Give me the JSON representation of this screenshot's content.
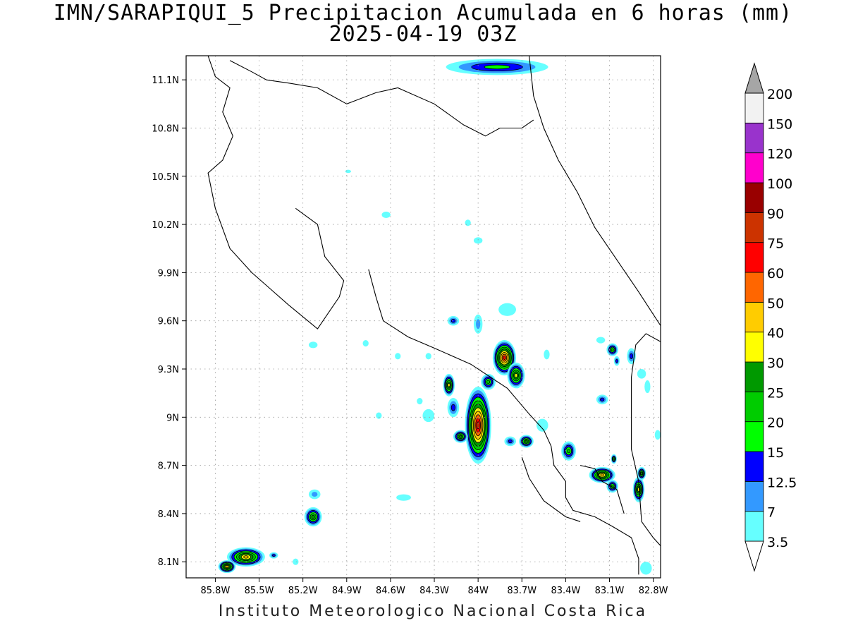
{
  "title": "IMN/SARAPIQUI_5 Precipitacion Acumulada en 6 horas (mm)",
  "subtitle": "2025-04-19 03Z",
  "credit": "Instituto Meteorologico Nacional Costa Rica",
  "chart_data": {
    "type": "heatmap",
    "title": "IMN/SARAPIQUI_5 Precipitacion Acumulada en 6 horas (mm)",
    "subtitle": "2025-04-19 03Z",
    "units": "mm",
    "xlim": [
      -86.0,
      -82.75
    ],
    "ylim": [
      8.0,
      11.25
    ],
    "x_ticks": [
      {
        "value": -85.8,
        "label": "85.8W"
      },
      {
        "value": -85.5,
        "label": "85.5W"
      },
      {
        "value": -85.2,
        "label": "85.2W"
      },
      {
        "value": -84.9,
        "label": "84.9W"
      },
      {
        "value": -84.6,
        "label": "84.6W"
      },
      {
        "value": -84.3,
        "label": "84.3W"
      },
      {
        "value": -84.0,
        "label": "84W"
      },
      {
        "value": -83.7,
        "label": "83.7W"
      },
      {
        "value": -83.4,
        "label": "83.4W"
      },
      {
        "value": -83.1,
        "label": "83.1W"
      },
      {
        "value": -82.8,
        "label": "82.8W"
      }
    ],
    "y_ticks": [
      {
        "value": 8.1,
        "label": "8.1N"
      },
      {
        "value": 8.4,
        "label": "8.4N"
      },
      {
        "value": 8.7,
        "label": "8.7N"
      },
      {
        "value": 9.0,
        "label": "9N"
      },
      {
        "value": 9.3,
        "label": "9.3N"
      },
      {
        "value": 9.6,
        "label": "9.6N"
      },
      {
        "value": 9.9,
        "label": "9.9N"
      },
      {
        "value": 10.2,
        "label": "10.2N"
      },
      {
        "value": 10.5,
        "label": "10.5N"
      },
      {
        "value": 10.8,
        "label": "10.8N"
      },
      {
        "value": 11.1,
        "label": "11.1N"
      }
    ],
    "grid": true,
    "legend": {
      "position": "right",
      "levels": [
        "3.5",
        "7",
        "12.5",
        "15",
        "20",
        "25",
        "30",
        "40",
        "50",
        "60",
        "75",
        "90",
        "100",
        "120",
        "150",
        "200"
      ],
      "colors": [
        "#66ffff",
        "#3399ff",
        "#0000ff",
        "#00ff00",
        "#00cc00",
        "#009900",
        "#ffff00",
        "#ffcc00",
        "#ff6600",
        "#ff0000",
        "#cc3300",
        "#990000",
        "#ff00cc",
        "#9933cc",
        "#f2f2f2",
        "#a6a6a6"
      ],
      "below_color": "#ffffff"
    },
    "precip_cells": [
      {
        "lon": -83.87,
        "lat": 11.18,
        "max_mm": 15,
        "rx": 0.35,
        "ry": 0.05
      },
      {
        "lon": -83.82,
        "lat": 9.37,
        "max_mm": 60,
        "rx": 0.08,
        "ry": 0.11
      },
      {
        "lon": -83.74,
        "lat": 9.26,
        "max_mm": 30,
        "rx": 0.06,
        "ry": 0.08
      },
      {
        "lon": -83.93,
        "lat": 9.22,
        "max_mm": 20,
        "rx": 0.05,
        "ry": 0.05
      },
      {
        "lon": -84.0,
        "lat": 8.95,
        "max_mm": 75,
        "rx": 0.09,
        "ry": 0.24
      },
      {
        "lon": -84.12,
        "lat": 8.88,
        "max_mm": 25,
        "rx": 0.05,
        "ry": 0.04
      },
      {
        "lon": -84.2,
        "lat": 9.2,
        "max_mm": 30,
        "rx": 0.04,
        "ry": 0.07
      },
      {
        "lon": -84.17,
        "lat": 9.06,
        "max_mm": 12.5,
        "rx": 0.04,
        "ry": 0.06
      },
      {
        "lon": -84.17,
        "lat": 9.6,
        "max_mm": 12.5,
        "rx": 0.04,
        "ry": 0.03
      },
      {
        "lon": -84.0,
        "lat": 9.58,
        "max_mm": 7,
        "rx": 0.03,
        "ry": 0.06
      },
      {
        "lon": -83.67,
        "lat": 8.85,
        "max_mm": 25,
        "rx": 0.05,
        "ry": 0.04
      },
      {
        "lon": -83.78,
        "lat": 8.85,
        "max_mm": 12.5,
        "rx": 0.04,
        "ry": 0.03
      },
      {
        "lon": -83.38,
        "lat": 8.79,
        "max_mm": 20,
        "rx": 0.05,
        "ry": 0.06
      },
      {
        "lon": -83.15,
        "lat": 8.64,
        "max_mm": 40,
        "rx": 0.09,
        "ry": 0.05
      },
      {
        "lon": -83.08,
        "lat": 8.57,
        "max_mm": 20,
        "rx": 0.04,
        "ry": 0.04
      },
      {
        "lon": -82.9,
        "lat": 8.55,
        "max_mm": 30,
        "rx": 0.04,
        "ry": 0.08
      },
      {
        "lon": -82.88,
        "lat": 8.65,
        "max_mm": 25,
        "rx": 0.03,
        "ry": 0.04
      },
      {
        "lon": -83.08,
        "lat": 9.42,
        "max_mm": 20,
        "rx": 0.04,
        "ry": 0.04
      },
      {
        "lon": -83.05,
        "lat": 9.35,
        "max_mm": 12.5,
        "rx": 0.02,
        "ry": 0.03
      },
      {
        "lon": -82.95,
        "lat": 9.38,
        "max_mm": 12.5,
        "rx": 0.03,
        "ry": 0.05
      },
      {
        "lon": -83.15,
        "lat": 9.11,
        "max_mm": 12.5,
        "rx": 0.04,
        "ry": 0.03
      },
      {
        "lon": -83.07,
        "lat": 8.74,
        "max_mm": 20,
        "rx": 0.02,
        "ry": 0.03
      },
      {
        "lon": -85.59,
        "lat": 8.13,
        "max_mm": 40,
        "rx": 0.13,
        "ry": 0.06
      },
      {
        "lon": -85.72,
        "lat": 8.07,
        "max_mm": 40,
        "rx": 0.06,
        "ry": 0.04
      },
      {
        "lon": -85.4,
        "lat": 8.14,
        "max_mm": 12.5,
        "rx": 0.03,
        "ry": 0.02
      },
      {
        "lon": -85.13,
        "lat": 8.38,
        "max_mm": 25,
        "rx": 0.06,
        "ry": 0.06
      },
      {
        "lon": -85.12,
        "lat": 8.52,
        "max_mm": 7,
        "rx": 0.04,
        "ry": 0.03
      }
    ],
    "light_patches": [
      {
        "lon": -83.8,
        "lat": 9.67,
        "rx": 0.06,
        "ry": 0.04
      },
      {
        "lon": -85.13,
        "lat": 9.45,
        "rx": 0.03,
        "ry": 0.02
      },
      {
        "lon": -84.34,
        "lat": 9.01,
        "rx": 0.04,
        "ry": 0.04
      },
      {
        "lon": -83.56,
        "lat": 8.95,
        "rx": 0.04,
        "ry": 0.04
      },
      {
        "lon": -84.51,
        "lat": 8.5,
        "rx": 0.05,
        "ry": 0.02
      },
      {
        "lon": -82.85,
        "lat": 8.06,
        "rx": 0.04,
        "ry": 0.04
      },
      {
        "lon": -82.77,
        "lat": 8.89,
        "rx": 0.02,
        "ry": 0.03
      },
      {
        "lon": -83.16,
        "lat": 9.48,
        "rx": 0.03,
        "ry": 0.02
      },
      {
        "lon": -82.84,
        "lat": 9.19,
        "rx": 0.02,
        "ry": 0.04
      },
      {
        "lon": -82.88,
        "lat": 9.27,
        "rx": 0.03,
        "ry": 0.03
      },
      {
        "lon": -83.53,
        "lat": 9.39,
        "rx": 0.02,
        "ry": 0.03
      },
      {
        "lon": -84.63,
        "lat": 10.26,
        "rx": 0.03,
        "ry": 0.02
      },
      {
        "lon": -84.0,
        "lat": 10.1,
        "rx": 0.03,
        "ry": 0.02
      },
      {
        "lon": -84.07,
        "lat": 10.21,
        "rx": 0.02,
        "ry": 0.02
      },
      {
        "lon": -84.77,
        "lat": 9.46,
        "rx": 0.02,
        "ry": 0.02
      },
      {
        "lon": -84.55,
        "lat": 9.38,
        "rx": 0.02,
        "ry": 0.02
      },
      {
        "lon": -84.34,
        "lat": 9.38,
        "rx": 0.02,
        "ry": 0.02
      },
      {
        "lon": -84.4,
        "lat": 9.1,
        "rx": 0.02,
        "ry": 0.02
      },
      {
        "lon": -84.68,
        "lat": 9.01,
        "rx": 0.02,
        "ry": 0.02
      },
      {
        "lon": -83.73,
        "lat": 9.2,
        "rx": 0.02,
        "ry": 0.02
      },
      {
        "lon": -85.25,
        "lat": 8.1,
        "rx": 0.02,
        "ry": 0.02
      },
      {
        "lon": -84.89,
        "lat": 10.53,
        "rx": 0.02,
        "ry": 0.01
      }
    ],
    "boundaries": {
      "color": "#000000",
      "coast_caribbean": [
        [
          -83.65,
          11.25
        ],
        [
          -83.62,
          11.0
        ],
        [
          -83.55,
          10.8
        ],
        [
          -83.45,
          10.6
        ],
        [
          -83.32,
          10.4
        ],
        [
          -83.2,
          10.18
        ],
        [
          -83.05,
          9.98
        ],
        [
          -82.9,
          9.78
        ],
        [
          -82.8,
          9.64
        ],
        [
          -82.75,
          9.57
        ]
      ],
      "coast_pacific": [
        [
          -84.75,
          9.92
        ],
        [
          -84.7,
          9.75
        ],
        [
          -84.65,
          9.6
        ],
        [
          -84.48,
          9.5
        ],
        [
          -84.3,
          9.43
        ],
        [
          -84.05,
          9.33
        ],
        [
          -83.8,
          9.18
        ],
        [
          -83.65,
          9.02
        ],
        [
          -83.55,
          8.92
        ],
        [
          -83.5,
          8.82
        ],
        [
          -83.48,
          8.7
        ],
        [
          -83.4,
          8.6
        ],
        [
          -83.4,
          8.5
        ],
        [
          -83.35,
          8.42
        ],
        [
          -83.2,
          8.38
        ],
        [
          -83.08,
          8.32
        ],
        [
          -82.95,
          8.25
        ],
        [
          -82.9,
          8.12
        ],
        [
          -82.9,
          8.02
        ]
      ],
      "border_nicaragua": [
        [
          -85.7,
          11.22
        ],
        [
          -85.55,
          11.15
        ],
        [
          -85.45,
          11.1
        ],
        [
          -85.3,
          11.08
        ],
        [
          -85.1,
          11.05
        ],
        [
          -84.9,
          10.95
        ],
        [
          -84.7,
          11.02
        ],
        [
          -84.55,
          11.05
        ],
        [
          -84.3,
          10.95
        ],
        [
          -84.1,
          10.82
        ],
        [
          -83.95,
          10.75
        ],
        [
          -83.85,
          10.8
        ],
        [
          -83.7,
          10.8
        ],
        [
          -83.62,
          10.85
        ]
      ],
      "border_panama": [
        [
          -82.75,
          9.47
        ],
        [
          -82.85,
          9.52
        ],
        [
          -82.92,
          9.45
        ],
        [
          -82.95,
          9.25
        ],
        [
          -82.95,
          9.0
        ],
        [
          -82.95,
          8.8
        ],
        [
          -82.9,
          8.6
        ],
        [
          -82.88,
          8.35
        ],
        [
          -82.8,
          8.25
        ],
        [
          -82.75,
          8.2
        ]
      ],
      "coast_nicoya": [
        [
          -85.85,
          11.25
        ],
        [
          -85.8,
          11.12
        ],
        [
          -85.7,
          11.05
        ],
        [
          -85.75,
          10.9
        ],
        [
          -85.68,
          10.75
        ],
        [
          -85.75,
          10.6
        ],
        [
          -85.85,
          10.52
        ],
        [
          -85.8,
          10.3
        ],
        [
          -85.7,
          10.05
        ],
        [
          -85.55,
          9.9
        ],
        [
          -85.3,
          9.7
        ],
        [
          -85.1,
          9.55
        ],
        [
          -84.95,
          9.75
        ],
        [
          -84.92,
          9.85
        ],
        [
          -85.05,
          10.0
        ],
        [
          -85.1,
          10.2
        ],
        [
          -85.25,
          10.3
        ]
      ],
      "coast_osa": [
        [
          -83.7,
          8.75
        ],
        [
          -83.65,
          8.62
        ],
        [
          -83.55,
          8.48
        ],
        [
          -83.4,
          8.38
        ],
        [
          -83.3,
          8.35
        ]
      ],
      "island_golfito": [
        [
          -83.3,
          8.7
        ],
        [
          -83.2,
          8.68
        ],
        [
          -83.15,
          8.6
        ],
        [
          -83.05,
          8.55
        ],
        [
          -83.0,
          8.4
        ]
      ]
    }
  }
}
